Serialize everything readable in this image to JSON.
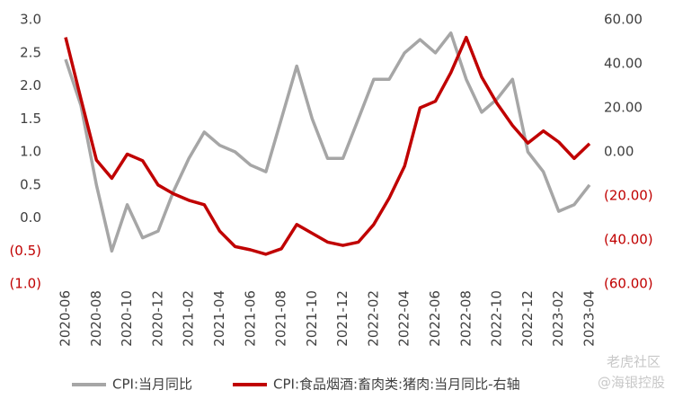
{
  "chart_data": {
    "type": "line",
    "categories": [
      "2020-06",
      null,
      "2020-08",
      null,
      "2020-10",
      null,
      "2020-12",
      null,
      "2021-02",
      null,
      "2021-04",
      null,
      "2021-06",
      null,
      "2021-08",
      null,
      "2021-10",
      null,
      "2021-12",
      null,
      "2022-02",
      null,
      "2022-04",
      null,
      "2022-06",
      null,
      "2022-08",
      null,
      "2022-10",
      null,
      "2022-12",
      null,
      "2023-02",
      null,
      "2023-04"
    ],
    "series": [
      {
        "name": "CPI:当月同比",
        "color": "#a6a6a6",
        "axis": "y",
        "values": [
          2.4,
          1.7,
          0.5,
          -0.5,
          0.2,
          -0.3,
          -0.2,
          0.4,
          0.9,
          1.3,
          1.1,
          1.0,
          0.8,
          0.7,
          1.5,
          2.3,
          1.5,
          0.9,
          0.9,
          1.5,
          2.1,
          2.1,
          2.5,
          2.7,
          2.5,
          2.8,
          2.1,
          1.6,
          1.8,
          2.1,
          1.0,
          0.7,
          0.1,
          0.2,
          0.5
        ]
      },
      {
        "name": "CPI:食品烟酒:畜肉类:猪肉:当月同比-右轴",
        "color": "#c00000",
        "axis": "y2",
        "values": [
          52,
          24,
          -3.7,
          -12,
          -1,
          -4,
          -15,
          -19,
          -22,
          -24,
          -36,
          -43,
          -44.5,
          -46.5,
          -44,
          -33,
          -37,
          -41,
          -42.5,
          -41,
          -33,
          -21,
          -6.5,
          20,
          23,
          36,
          52,
          34,
          22,
          12,
          4,
          9.5,
          4.5,
          -3,
          3.7
        ]
      }
    ],
    "ylim": [
      -1,
      3
    ],
    "yticks": [
      {
        "value": 3,
        "label": "3.0"
      },
      {
        "value": 2.5,
        "label": "2.5"
      },
      {
        "value": 2,
        "label": "2.0"
      },
      {
        "value": 1.5,
        "label": "1.5"
      },
      {
        "value": 1,
        "label": "1.0"
      },
      {
        "value": 0.5,
        "label": "0.5"
      },
      {
        "value": 0,
        "label": "0.0"
      },
      {
        "value": -0.5,
        "label": "(0.5)"
      },
      {
        "value": -1,
        "label": "(1.0)"
      }
    ],
    "y2lim": [
      -60,
      60
    ],
    "y2ticks": [
      {
        "value": 60,
        "label": "60.00"
      },
      {
        "value": 40,
        "label": "40.00"
      },
      {
        "value": 20,
        "label": "20.00"
      },
      {
        "value": 0,
        "label": "0.00"
      },
      {
        "value": -20,
        "label": "(20.00)"
      },
      {
        "value": -40,
        "label": "(40.00)"
      },
      {
        "value": -60,
        "label": "(60.00)"
      }
    ],
    "negative_tick_color": "#c00000",
    "tick_color": "#404040",
    "grid": false,
    "legend": "bottom",
    "watermark": "老虎社区",
    "watermark_sub": "@海银控股"
  }
}
